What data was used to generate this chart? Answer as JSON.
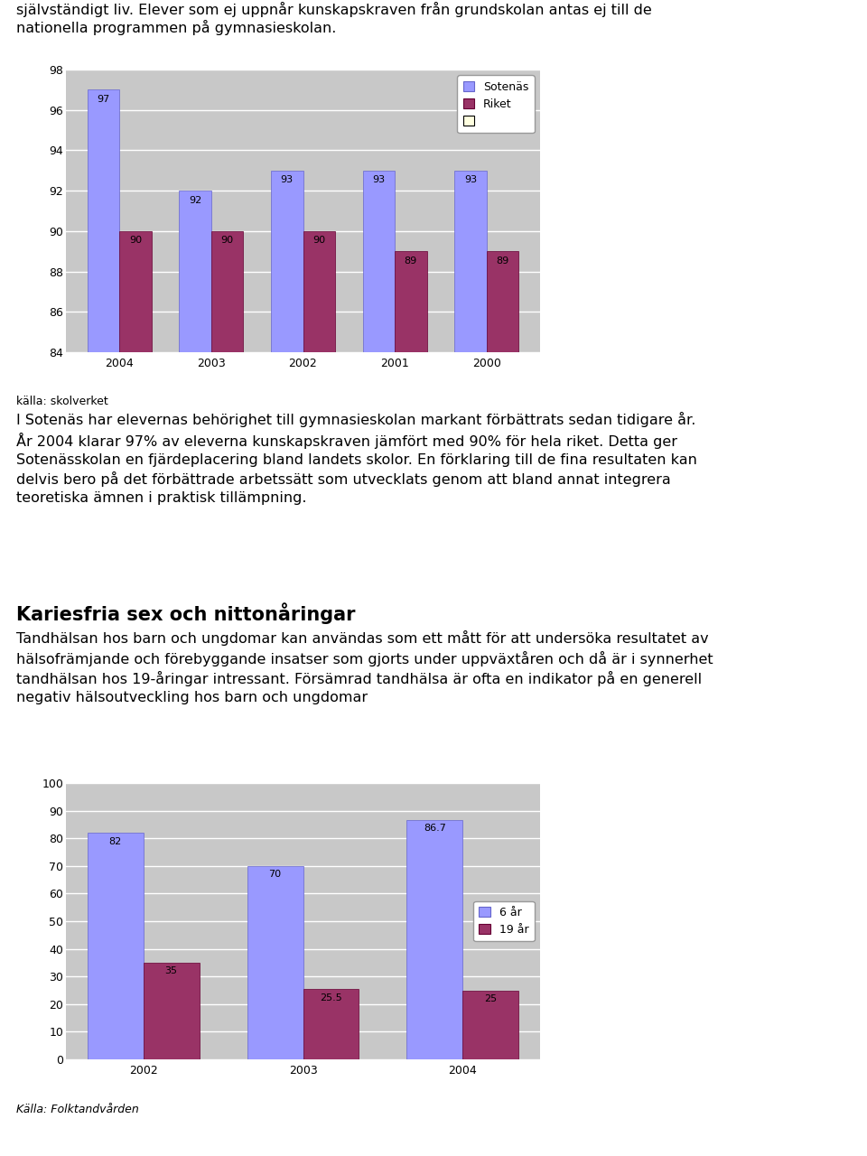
{
  "chart1": {
    "categories": [
      "2004",
      "2003",
      "2002",
      "2001",
      "2000"
    ],
    "sotenas": [
      97,
      92,
      93,
      93,
      93
    ],
    "riket": [
      90,
      90,
      90,
      89,
      89
    ],
    "ylim": [
      84,
      98
    ],
    "yticks": [
      84,
      86,
      88,
      90,
      92,
      94,
      96,
      98
    ],
    "color_sotenas": "#9999FF",
    "color_riket": "#993366",
    "source": "källa: skolverket",
    "background_color": "#C8C8C8"
  },
  "chart2": {
    "categories": [
      "2002",
      "2003",
      "2004"
    ],
    "six_year": [
      82,
      70,
      86.7
    ],
    "nineteen_year": [
      35,
      25.5,
      25
    ],
    "ylim": [
      0,
      100
    ],
    "yticks": [
      0,
      10,
      20,
      30,
      40,
      50,
      60,
      70,
      80,
      90,
      100
    ],
    "color_6ar": "#9999FF",
    "color_19ar": "#993366",
    "source": "Källa: Folktandvården",
    "background_color": "#C8C8C8"
  },
  "text_top": "självständigt liv. Elever som ej uppnår kunskapskraven från grundskolan antas ej till de\nnationella programmen på gymnasieskolan.",
  "text_middle": "I Sotenäs har elevernas behörighet till gymnasieskolan markant förbättrats sedan tidigare år.\nÅr 2004 klarar 97% av eleverna kunskapskraven jämfört med 90% för hela riket. Detta ger\nSotenässkolan en fjärdeplacering bland landets skolor. En förklaring till de fina resultaten kan\ndelvis bero på det förbättrade arbetssätt som utvecklats genom att bland annat integrera\nteoretiska ämnen i praktisk tillämpning.",
  "text_section_title": "Kariesfria sex och nittonåringar",
  "text_section_body": "Tandhälsan hos barn och ungdomar kan användas som ett mått för att undersöka resultatet av\nhälsofrämjande och förebyggande insatser som gjorts under uppväxtåren och då är i synnerhet\ntandhälsan hos 19-åringar intressant. Försämrad tandhälsa är ofta en indikator på en generell\nnegativ hälsoutveckling hos barn och ungdomar",
  "page_bg": "#FFFFFF",
  "font_size_body": 11.5,
  "font_size_section_title": 15
}
